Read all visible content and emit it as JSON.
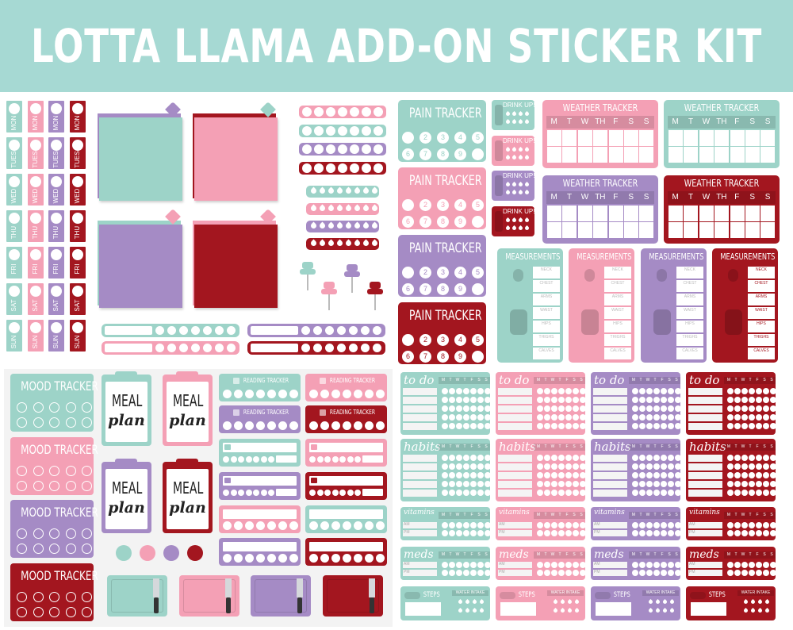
{
  "title": "LOTTA LLAMA ADD-ON STICKER KIT",
  "colors": {
    "header": "#a6d9d3",
    "teal": "#9dd3c8",
    "pink": "#f4a0b5",
    "purple": "#a58bc5",
    "red": "#a3161f",
    "sheet": "#f3f3f3"
  },
  "days": [
    "MON",
    "TUES",
    "WED",
    "THU",
    "FRI",
    "SAT",
    "SUN"
  ],
  "pain": {
    "title": "PAIN TRACKER",
    "numbers": [
      "2",
      "3",
      "4",
      "5",
      "6",
      "7",
      "8",
      "9"
    ]
  },
  "drink": "DRINK UP!",
  "weather": {
    "title": "WEATHER TRACKER",
    "days": [
      "M",
      "T",
      "W",
      "TH",
      "F",
      "S",
      "S"
    ]
  },
  "measurements": {
    "title": "MEASUREMENTS",
    "fields": [
      "NECK",
      "CHEST",
      "ARMS",
      "WAIST",
      "HIPS",
      "THIGHS",
      "CALVES"
    ]
  },
  "mood": "MOOD TRACKER",
  "meal": {
    "line1": "MEAL",
    "line2": "plan"
  },
  "reading": "READING TRACKER",
  "week_letters": [
    "M",
    "T",
    "W",
    "T",
    "F",
    "S",
    "S"
  ],
  "todo": "to do",
  "habits": "habits",
  "vitamins": "vitamins",
  "meds": "meds",
  "am": "AM",
  "pm": "PM",
  "steps": "STEPS",
  "water": "WATER INTAKE"
}
